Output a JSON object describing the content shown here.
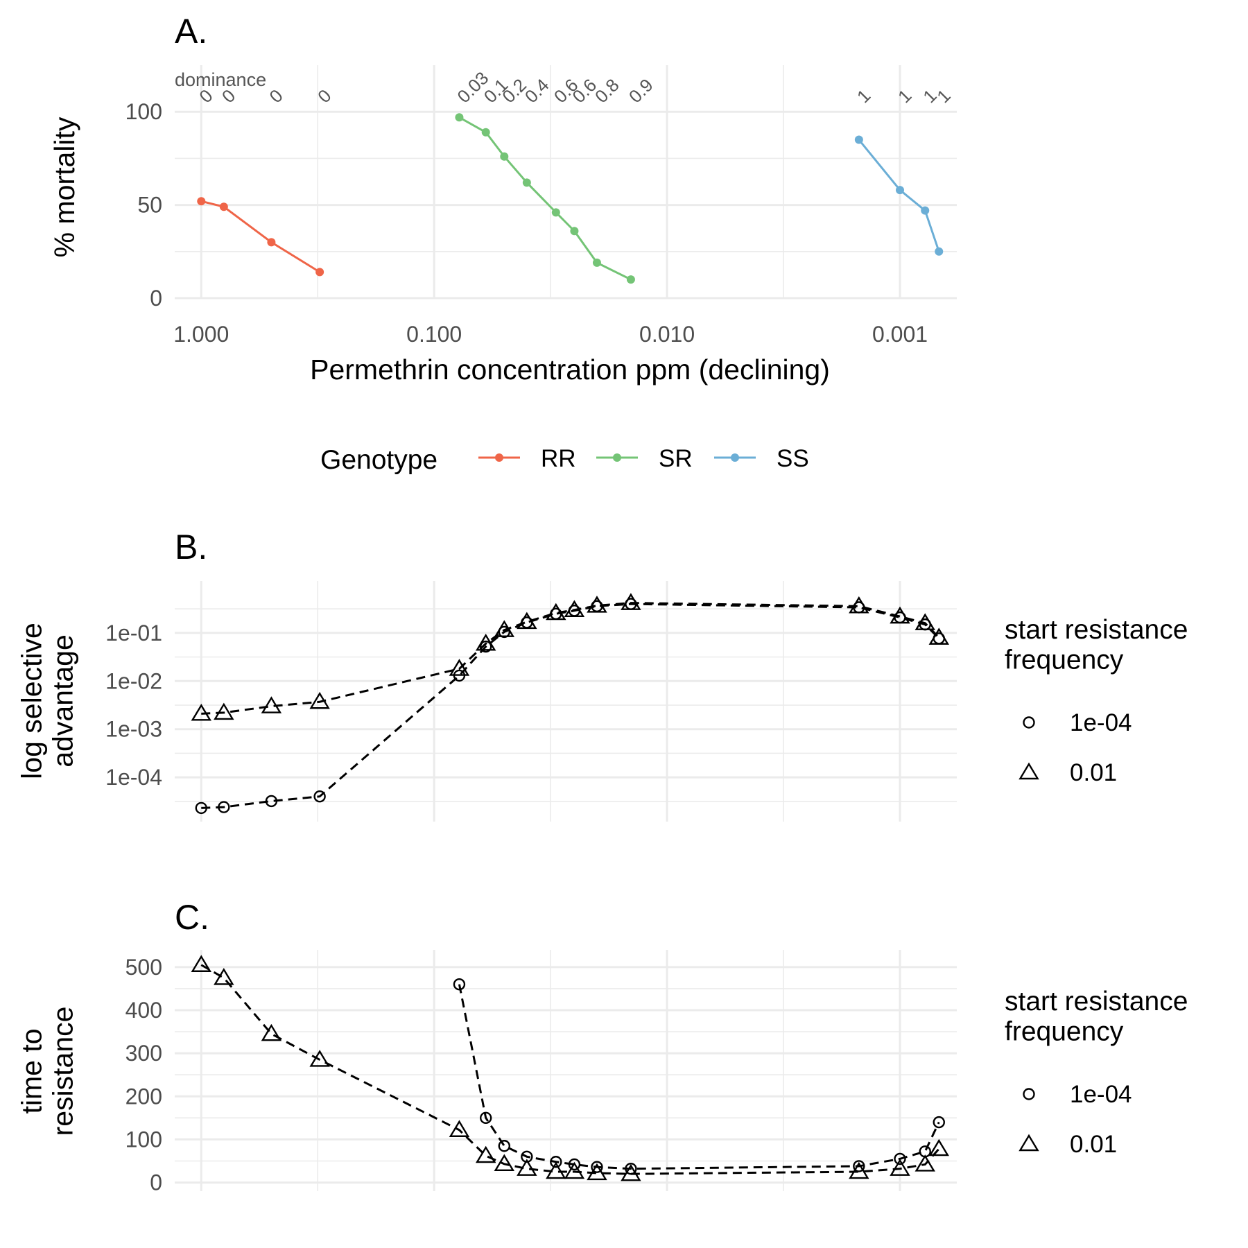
{
  "chart_data": [
    {
      "panel": "A.",
      "type": "line",
      "xlabel": "Permethrin concentration ppm (declining)",
      "ylabel": "% mortality",
      "x_scale": "log10, reversed",
      "xlim": [
        1.3,
        0.00057
      ],
      "ylim": [
        0,
        125
      ],
      "x_ticks": [
        1.0,
        0.1,
        0.01,
        0.001
      ],
      "x_tick_labels": [
        "1.000",
        "0.100",
        "0.010",
        "0.001"
      ],
      "y_ticks": [
        0,
        50,
        100
      ],
      "y_tick_labels": [
        "0",
        "50",
        "100"
      ],
      "grid": true,
      "dominance_caption": "dominance",
      "legend": {
        "title": "Genotype",
        "position": "bottom"
      },
      "series": [
        {
          "name": "RR",
          "color": "#EF6548",
          "x": [
            1.0,
            0.8,
            0.5,
            0.31
          ],
          "y": [
            52,
            49,
            30,
            14
          ],
          "dominance": [
            "0",
            "0",
            "0",
            "0"
          ]
        },
        {
          "name": "SR",
          "color": "#74C476",
          "x": [
            0.078,
            0.06,
            0.05,
            0.04,
            0.03,
            0.025,
            0.02,
            0.0143
          ],
          "y": [
            97,
            89,
            76,
            62,
            46,
            36,
            19,
            10
          ],
          "dominance": [
            "0.03",
            "0.1",
            "0.2",
            "0.4",
            "0.6",
            "0.6",
            "0.8",
            "0.9"
          ]
        },
        {
          "name": "SS",
          "color": "#6BAED6",
          "x": [
            0.0015,
            0.001,
            0.00078,
            0.00068
          ],
          "y": [
            85,
            58,
            47,
            25
          ],
          "dominance": [
            "1",
            "1",
            "1",
            "1"
          ]
        }
      ]
    },
    {
      "panel": "B.",
      "type": "line",
      "ylabel": "log selective advantage",
      "x_scale": "log10, reversed",
      "y_scale": "log10",
      "xlim": [
        1.3,
        0.00057
      ],
      "ylim": [
        1.2e-05,
        1.2
      ],
      "y_ticks": [
        0.0001,
        0.001,
        0.01,
        0.1
      ],
      "y_tick_labels": [
        "1e-04",
        "1e-03",
        "1e-02",
        "1e-01"
      ],
      "grid": true,
      "legend": {
        "title": "start resistance frequency",
        "position": "right",
        "entries": [
          "1e-04",
          "0.01"
        ]
      },
      "x": [
        1.0,
        0.8,
        0.5,
        0.31,
        0.078,
        0.06,
        0.05,
        0.04,
        0.03,
        0.025,
        0.02,
        0.0143,
        0.0015,
        0.001,
        0.00078,
        0.00068
      ],
      "series": [
        {
          "name": "1e-04",
          "marker": "circle",
          "y": [
            2.3e-05,
            2.4e-05,
            3.2e-05,
            4e-05,
            0.013,
            0.052,
            0.105,
            0.165,
            0.25,
            0.29,
            0.36,
            0.4,
            0.34,
            0.21,
            0.15,
            0.077
          ]
        },
        {
          "name": "0.01",
          "marker": "triangle",
          "y": [
            0.0021,
            0.0022,
            0.003,
            0.0037,
            0.018,
            0.06,
            0.115,
            0.17,
            0.26,
            0.3,
            0.37,
            0.42,
            0.36,
            0.22,
            0.16,
            0.08
          ]
        }
      ]
    },
    {
      "panel": "C.",
      "type": "line",
      "ylabel": "time to resistance",
      "x_scale": "log10, reversed",
      "xlim": [
        1.3,
        0.00057
      ],
      "ylim": [
        -20,
        540
      ],
      "y_ticks": [
        0,
        100,
        200,
        300,
        400,
        500
      ],
      "y_tick_labels": [
        "0",
        "100",
        "200",
        "300",
        "400",
        "500"
      ],
      "grid": true,
      "legend": {
        "title": "start resistance frequency",
        "position": "right",
        "entries": [
          "1e-04",
          "0.01"
        ]
      },
      "x": [
        1.0,
        0.8,
        0.5,
        0.31,
        0.078,
        0.06,
        0.05,
        0.04,
        0.03,
        0.025,
        0.02,
        0.0143,
        0.0015,
        0.001,
        0.00078,
        0.00068
      ],
      "series": [
        {
          "name": "1e-04",
          "marker": "circle",
          "x": [
            0.078,
            0.06,
            0.05,
            0.04,
            0.03,
            0.025,
            0.02,
            0.0143,
            0.0015,
            0.001,
            0.00078,
            0.00068
          ],
          "y": [
            460,
            150,
            85,
            60,
            48,
            42,
            36,
            32,
            38,
            55,
            72,
            140
          ]
        },
        {
          "name": "0.01",
          "marker": "triangle",
          "y": [
            505,
            475,
            345,
            285,
            122,
            62,
            43,
            32,
            25,
            25,
            22,
            20,
            25,
            32,
            42,
            78
          ]
        }
      ]
    }
  ]
}
